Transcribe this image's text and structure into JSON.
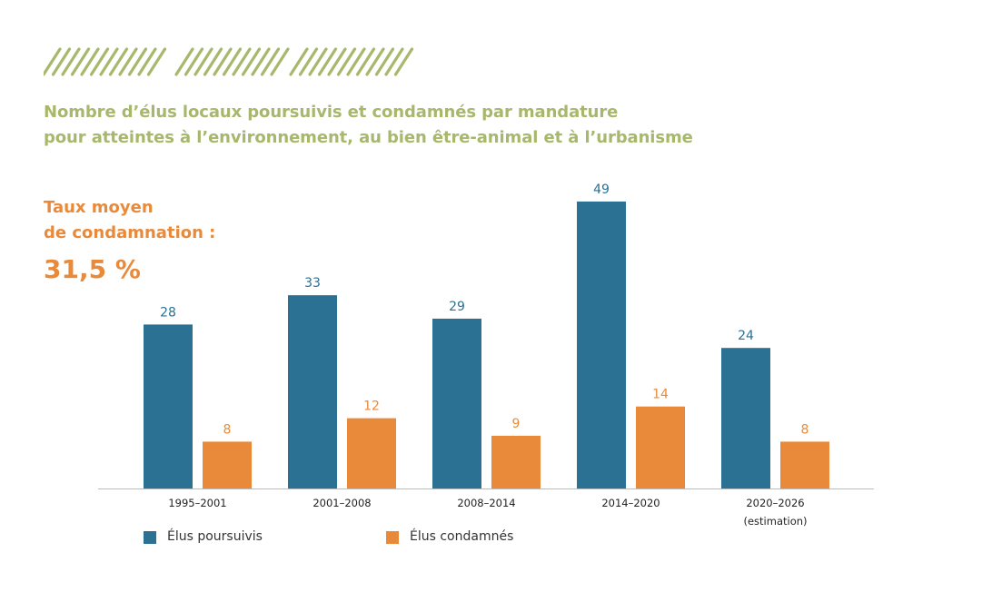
{
  "header": {
    "title_line1": "Nombre d’élus locaux poursuivis et condamnés par mandature",
    "title_line2": "pour atteintes à l’environnement, au bien être-animal et à l’urbanisme"
  },
  "side_note": {
    "label_line1": "Taux moyen",
    "label_line2": "de condamnation :",
    "value": "31,5 %"
  },
  "colors": {
    "title": "#a7b86c",
    "accent_orange": "#e98a3b",
    "blue": "#2a7193",
    "axis": "#bbbbbb"
  },
  "legend": {
    "position": "bottom-left",
    "items": [
      {
        "label": "Élus poursuivis",
        "color": "#2a7193"
      },
      {
        "label": "Élus condamnés",
        "color": "#e98a3b"
      }
    ]
  },
  "chart_data": {
    "type": "bar",
    "categories": [
      "1995-2001",
      "2001-2008",
      "2008-2014",
      "2014-2020",
      "2020-2026"
    ],
    "category_notes": [
      "",
      "",
      "",
      "",
      "(estimation)"
    ],
    "series": [
      {
        "name": "Élus poursuivis",
        "values": [
          28,
          33,
          29,
          49,
          24
        ],
        "color": "#2a7193"
      },
      {
        "name": "Élus condamnés",
        "values": [
          8,
          12,
          9,
          14,
          8
        ],
        "color": "#e98a3b"
      }
    ],
    "title": "Nombre d’élus locaux poursuivis et condamnés par mandature pour atteintes à l’environnement, au bien être-animal et à l’urbanisme",
    "xlabel": "",
    "ylabel": "",
    "ylim": [
      0,
      49
    ],
    "grid": false,
    "data_labels": true
  }
}
